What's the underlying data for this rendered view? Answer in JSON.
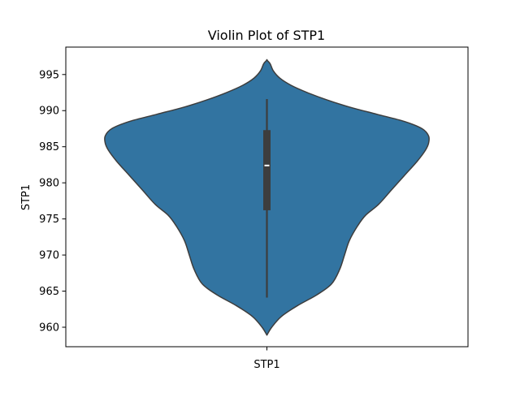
{
  "chart_data": {
    "type": "violin",
    "title": "Violin Plot of STP1",
    "xlabel": "",
    "ylabel": "STP1",
    "categories": [
      "STP1"
    ],
    "ylim": [
      957.3,
      998.8
    ],
    "yticks": [
      960,
      965,
      970,
      975,
      980,
      985,
      990,
      995
    ],
    "grid": false,
    "series": [
      {
        "color": "#3274a1",
        "edge_color": "#3d3d3d",
        "box": {
          "whisker_low": 964.1,
          "q1": 976.2,
          "median": 982.4,
          "q3": 987.3,
          "whisker_high": 991.6
        },
        "density_profile": [
          {
            "y": 958.9,
            "w": 0.0
          },
          {
            "y": 960.0,
            "w": 0.03
          },
          {
            "y": 961.5,
            "w": 0.09
          },
          {
            "y": 963.0,
            "w": 0.19
          },
          {
            "y": 964.5,
            "w": 0.31
          },
          {
            "y": 966.0,
            "w": 0.4
          },
          {
            "y": 968.0,
            "w": 0.45
          },
          {
            "y": 970.0,
            "w": 0.48
          },
          {
            "y": 972.0,
            "w": 0.51
          },
          {
            "y": 974.0,
            "w": 0.56
          },
          {
            "y": 975.5,
            "w": 0.61
          },
          {
            "y": 977.0,
            "w": 0.69
          },
          {
            "y": 979.0,
            "w": 0.77
          },
          {
            "y": 981.0,
            "w": 0.85
          },
          {
            "y": 983.0,
            "w": 0.93
          },
          {
            "y": 984.5,
            "w": 0.98
          },
          {
            "y": 985.5,
            "w": 1.0
          },
          {
            "y": 986.5,
            "w": 1.0
          },
          {
            "y": 987.5,
            "w": 0.96
          },
          {
            "y": 988.5,
            "w": 0.85
          },
          {
            "y": 989.5,
            "w": 0.68
          },
          {
            "y": 990.5,
            "w": 0.51
          },
          {
            "y": 991.5,
            "w": 0.37
          },
          {
            "y": 992.5,
            "w": 0.25
          },
          {
            "y": 993.5,
            "w": 0.15
          },
          {
            "y": 994.5,
            "w": 0.08
          },
          {
            "y": 995.5,
            "w": 0.04
          },
          {
            "y": 996.5,
            "w": 0.02
          },
          {
            "y": 997.0,
            "w": 0.0
          }
        ]
      }
    ]
  }
}
